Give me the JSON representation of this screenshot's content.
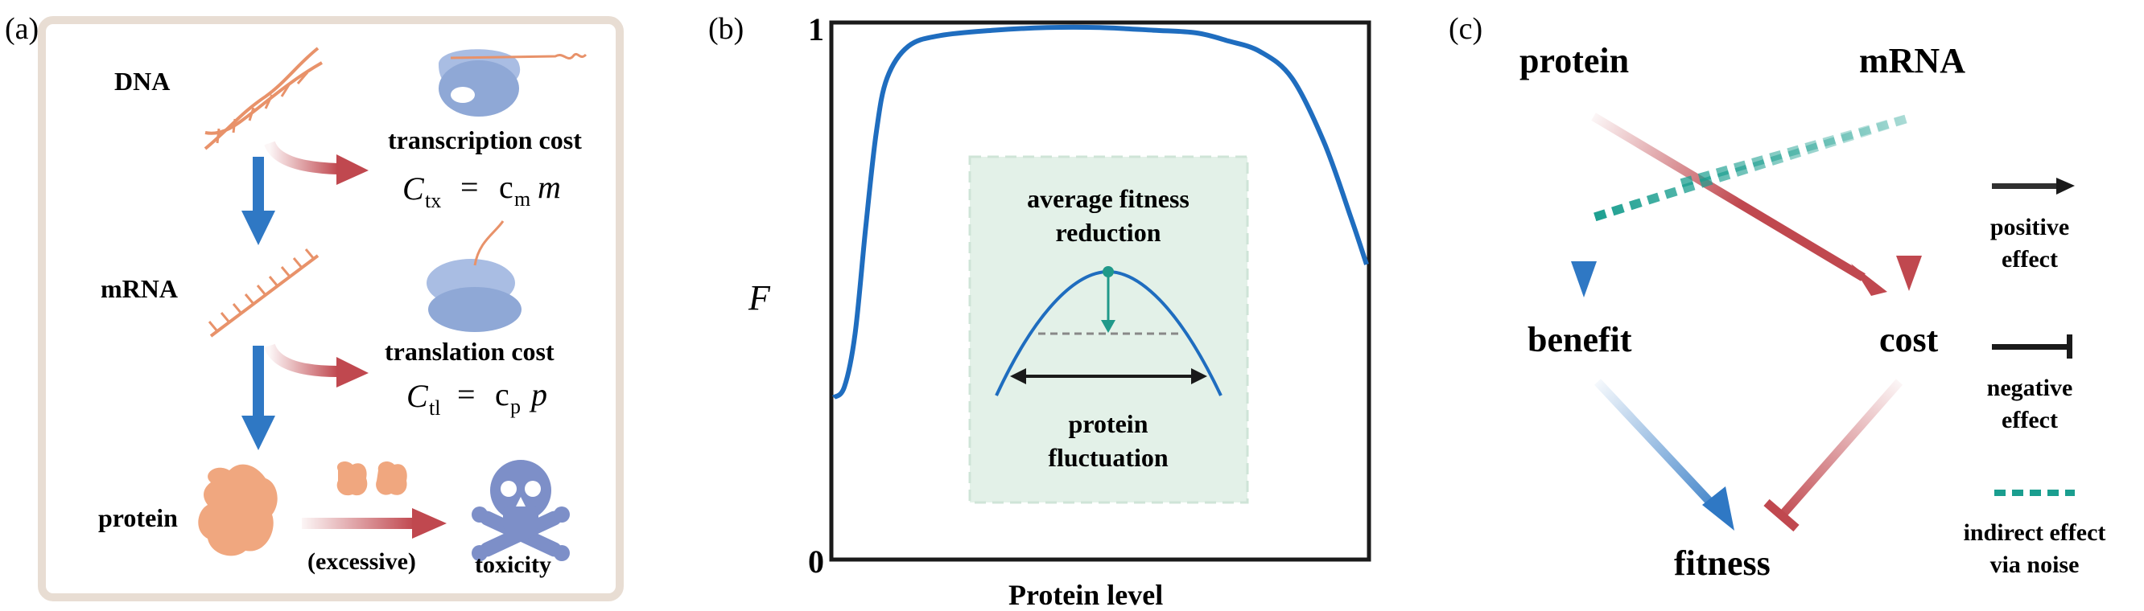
{
  "panel_a": {
    "label": "(a)",
    "dna_label": "DNA",
    "mrna_label": "mRNA",
    "protein_label": "protein",
    "transcription_cost_label": "transcription cost",
    "transcription_formula": {
      "lhs_main": "C",
      "lhs_sub": "tx",
      "eq": "=",
      "rhs_main": "c",
      "rhs_sub": "m",
      "rhs_var": "m"
    },
    "translation_cost_label": "translation cost",
    "translation_formula": {
      "lhs_main": "C",
      "lhs_sub": "tl",
      "eq": "=",
      "rhs_main": "c",
      "rhs_sub": "p",
      "rhs_var": "p"
    },
    "excessive_label": "(excessive)",
    "toxicity_label": "toxicity",
    "colors": {
      "box_border": "#e8ddd3",
      "arrow_blue": "#2f78c4",
      "arrow_red": "#c0484f",
      "dna": "#e8926a",
      "ribosome": "#8fa8d6",
      "protein_blob": "#f0a77f",
      "skull": "#7d8fc8"
    }
  },
  "panel_b": {
    "label": "(b)",
    "y_axis_label": "F",
    "x_axis_label": "Protein level",
    "y_tick_top": "1",
    "y_tick_bottom": "0",
    "inset_title_line1": "average fitness",
    "inset_title_line2": "reduction",
    "inset_bottom_line1": "protein",
    "inset_bottom_line2": "fluctuation",
    "colors": {
      "curve": "#1f6dbf",
      "inset_bg": "#e3f1e8",
      "inset_arrow": "#20998a"
    }
  },
  "panel_c": {
    "label": "(c)",
    "protein_label": "protein",
    "mrna_label": "mRNA",
    "benefit_label": "benefit",
    "cost_label": "cost",
    "fitness_label": "fitness",
    "legend_positive_line1": "positive",
    "legend_positive_line2": "effect",
    "legend_negative_line1": "negative",
    "legend_negative_line2": "effect",
    "legend_indirect_line1": "indirect effect",
    "legend_indirect_line2": "via noise",
    "colors": {
      "blue": "#2f78c4",
      "red": "#c0484f",
      "teal": "#1a9e8f",
      "black": "#1a1a1a"
    }
  },
  "chart_data": {
    "type": "line",
    "xlabel": "Protein level",
    "ylabel": "F",
    "ylim": [
      0,
      1
    ],
    "series": [
      {
        "x": [
          0,
          0.02,
          0.04,
          0.06,
          0.08,
          0.1,
          0.14,
          0.2,
          0.3,
          0.4,
          0.5,
          0.6,
          0.68,
          0.74,
          0.8,
          0.86,
          0.92,
          0.97,
          1.0
        ],
        "values": [
          0.3,
          0.32,
          0.42,
          0.62,
          0.8,
          0.9,
          0.96,
          0.98,
          0.99,
          0.995,
          0.995,
          0.99,
          0.985,
          0.97,
          0.95,
          0.9,
          0.78,
          0.64,
          0.55
        ]
      }
    ]
  }
}
